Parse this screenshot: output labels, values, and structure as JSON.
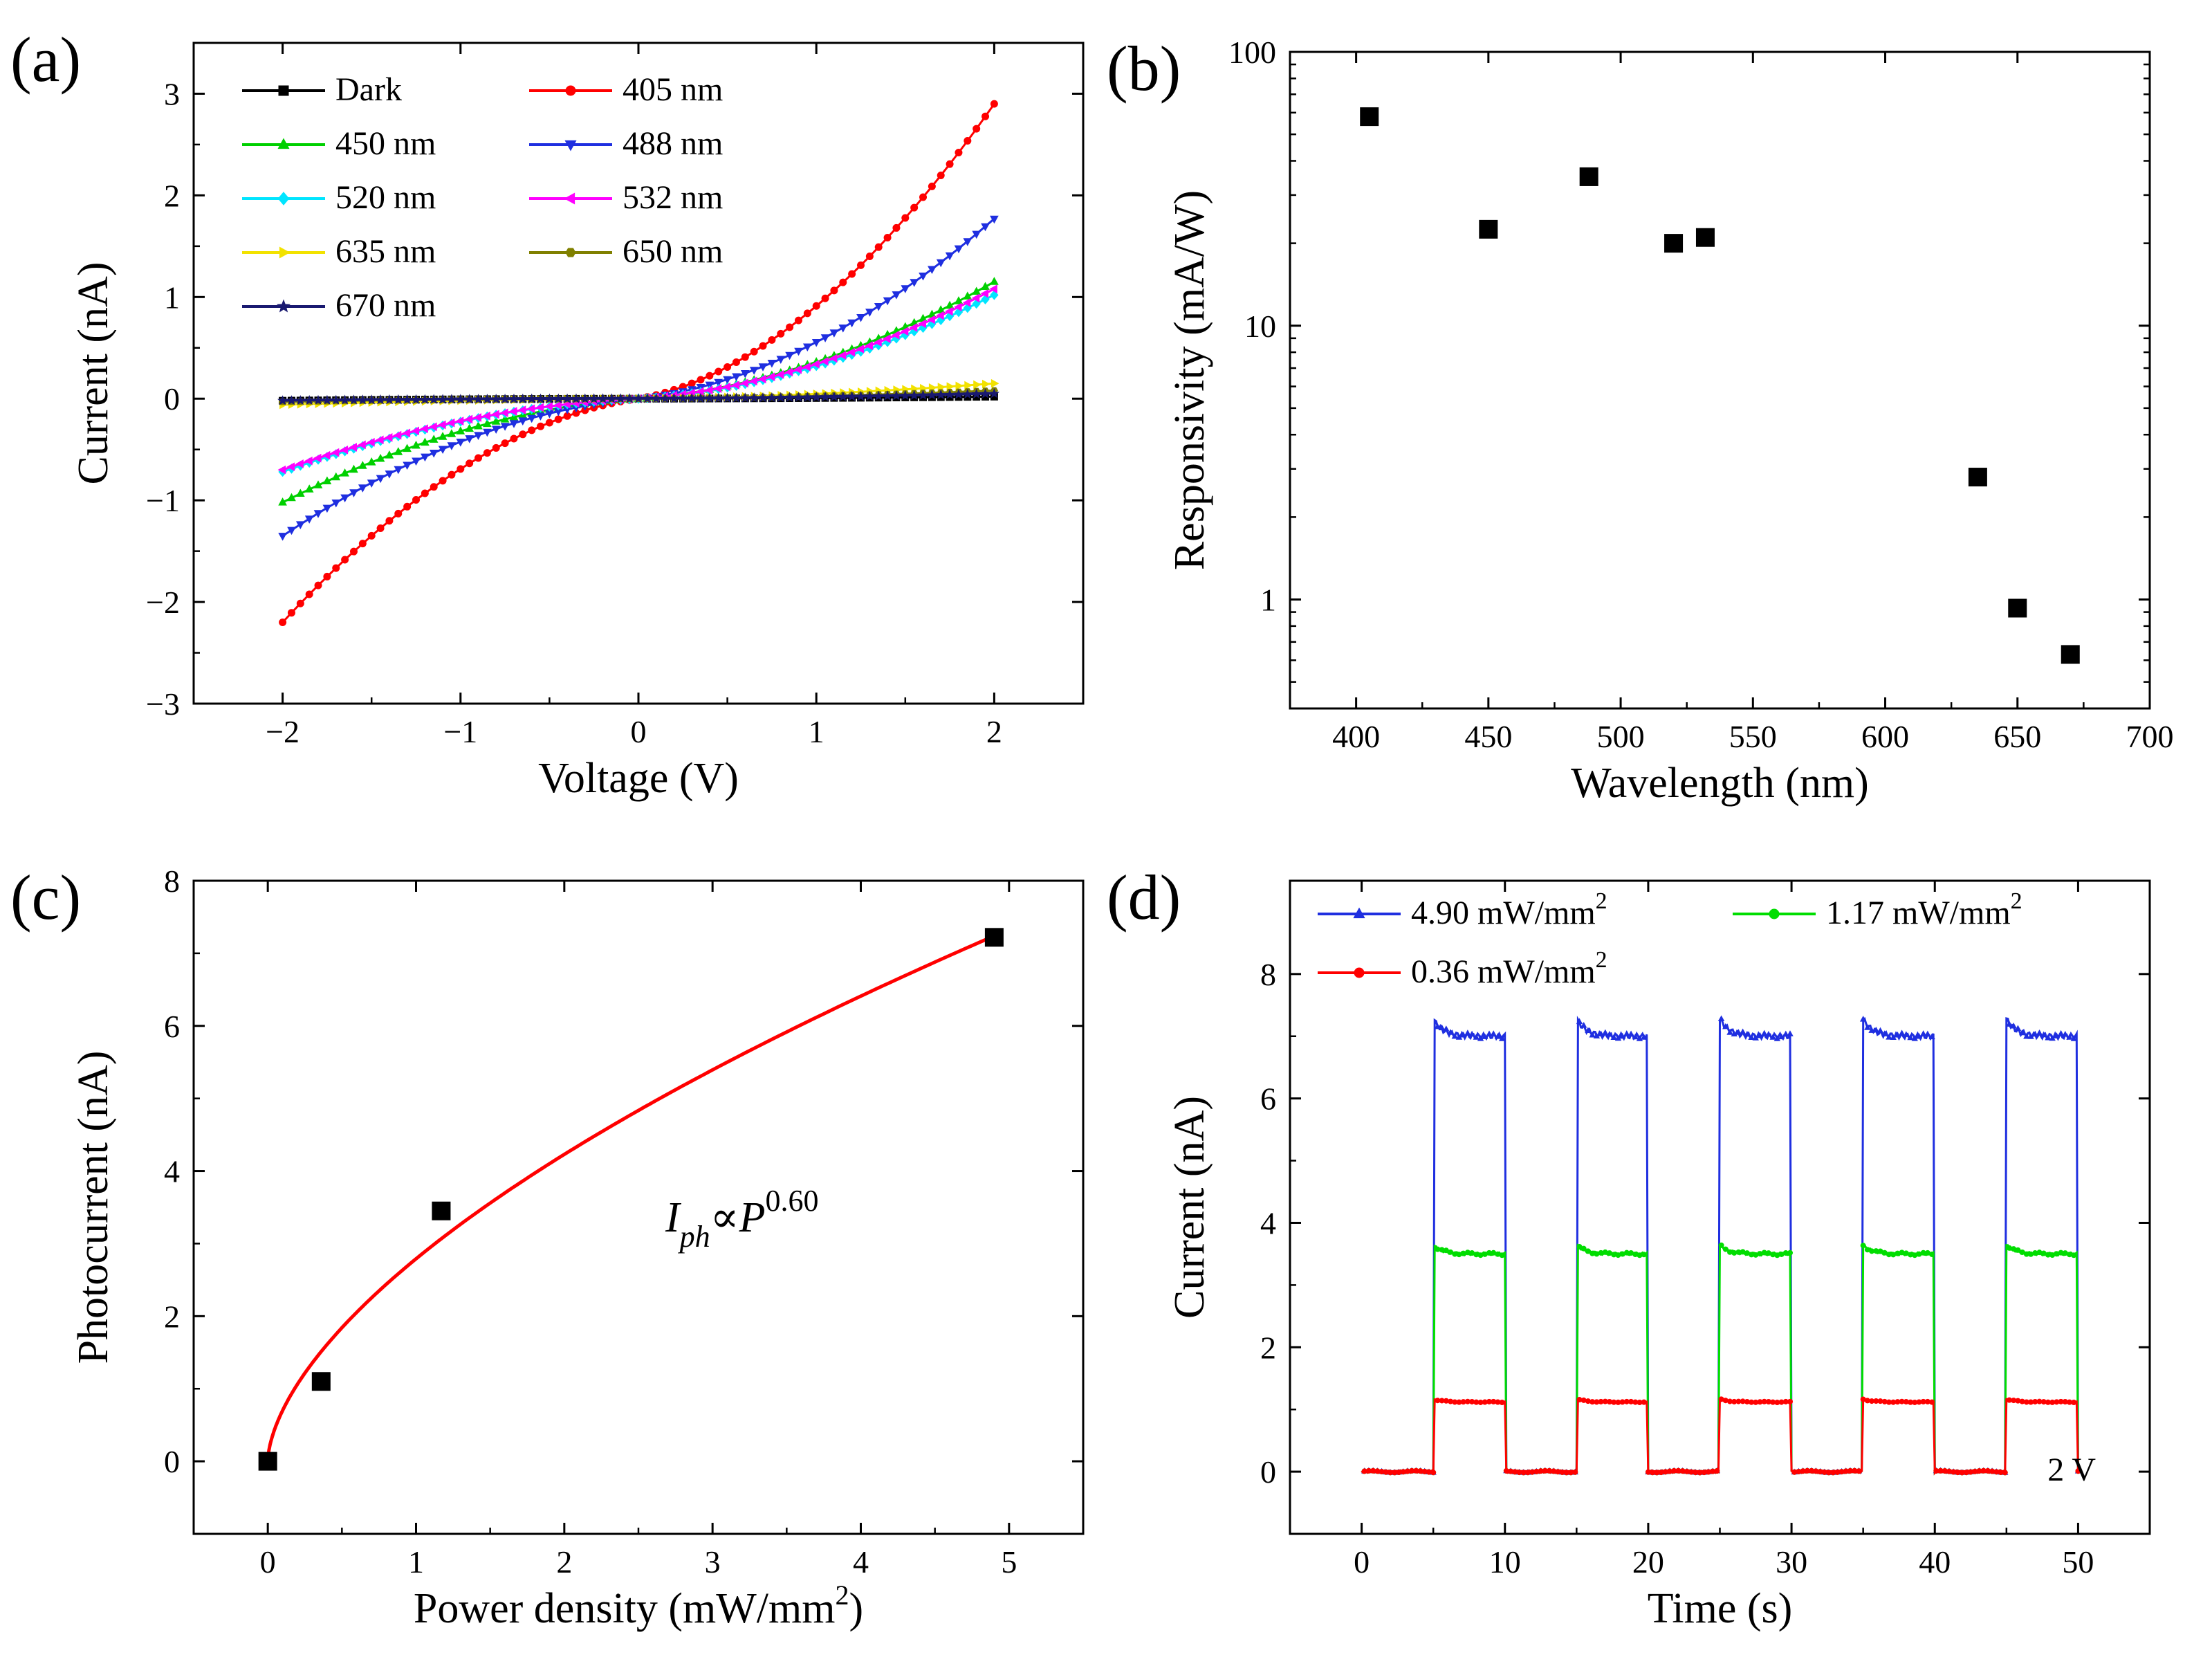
{
  "chart_data": [
    {
      "id": "a",
      "type": "line",
      "panel_label": "(a)",
      "xlabel": "Voltage (V)",
      "ylabel": "Current (nA)",
      "xlim": [
        -2.5,
        2.5
      ],
      "ylim": [
        -3,
        3.5
      ],
      "xticks": [
        -2,
        -1,
        0,
        1,
        2
      ],
      "yticks": [
        -3,
        -2,
        -1,
        0,
        1,
        2,
        3
      ],
      "xtick_labels": [
        "−2",
        "−1",
        "0",
        "1",
        "2"
      ],
      "ytick_labels": [
        "−3",
        "−2",
        "−1",
        "0",
        "1",
        "2",
        "3"
      ],
      "x_range": [
        -2,
        2
      ],
      "points_per_series": 81,
      "legend": "top-left, two columns",
      "series": [
        {
          "name": "Dark",
          "color": "#000000",
          "marker": "square",
          "i_neg2": -0.02,
          "i_pos2": 0.02
        },
        {
          "name": "405 nm",
          "color": "#ff0000",
          "marker": "circle",
          "i_neg2": -2.2,
          "i_pos2": 2.9
        },
        {
          "name": "450 nm",
          "color": "#00d000",
          "marker": "triangle-up",
          "i_neg2": -1.02,
          "i_pos2": 1.15
        },
        {
          "name": "488 nm",
          "color": "#1f2fe0",
          "marker": "triangle-down",
          "i_neg2": -1.35,
          "i_pos2": 1.77
        },
        {
          "name": "520 nm",
          "color": "#00e5ff",
          "marker": "diamond",
          "i_neg2": -0.72,
          "i_pos2": 1.02
        },
        {
          "name": "532 nm",
          "color": "#ff00ff",
          "marker": "triangle-left",
          "i_neg2": -0.7,
          "i_pos2": 1.08
        },
        {
          "name": "635 nm",
          "color": "#f2e200",
          "marker": "triangle-right",
          "i_neg2": -0.06,
          "i_pos2": 0.15
        },
        {
          "name": "650 nm",
          "color": "#808000",
          "marker": "hexagon",
          "i_neg2": -0.03,
          "i_pos2": 0.08
        },
        {
          "name": "670 nm",
          "color": "#191970",
          "marker": "star",
          "i_neg2": -0.02,
          "i_pos2": 0.05
        }
      ]
    },
    {
      "id": "b",
      "type": "scatter",
      "panel_label": "(b)",
      "xlabel": "Wavelength (nm)",
      "ylabel": "Responsivity (mA/W)",
      "yscale": "log",
      "xlim": [
        375,
        700
      ],
      "ylim": [
        0.4,
        100
      ],
      "xticks": [
        400,
        450,
        500,
        550,
        600,
        650,
        700
      ],
      "yticks": [
        1,
        10,
        100
      ],
      "x": [
        405,
        450,
        488,
        520,
        532,
        635,
        650,
        670
      ],
      "y": [
        58,
        22.5,
        35,
        20,
        21,
        2.8,
        0.93,
        0.63
      ]
    },
    {
      "id": "c",
      "type": "scatter",
      "panel_label": "(c)",
      "xlabel": "Power density (mW/mm",
      "xlabel_sup": "2",
      "xlabel_tail": ")",
      "ylabel": "Photocurrent (nA)",
      "xlim": [
        -0.5,
        5.5
      ],
      "ylim": [
        -1,
        8
      ],
      "xticks": [
        0,
        1,
        2,
        3,
        4,
        5
      ],
      "yticks": [
        0,
        2,
        4,
        6,
        8
      ],
      "x": [
        0,
        0.36,
        1.17,
        4.9
      ],
      "y": [
        0,
        1.1,
        3.45,
        7.22
      ],
      "fit": {
        "exponent": 0.6,
        "coefficient": 2.79,
        "color": "#ff0000"
      },
      "annotation": {
        "base": "I",
        "sub": "ph",
        "symbol": "∝",
        "var": "P",
        "sup": "0.60"
      }
    },
    {
      "id": "d",
      "type": "line",
      "panel_label": "(d)",
      "xlabel": "Time (s)",
      "ylabel": "Current (nA)",
      "xlim": [
        -5,
        55
      ],
      "ylim": [
        -1,
        9.5
      ],
      "xticks": [
        0,
        10,
        20,
        30,
        40,
        50
      ],
      "yticks": [
        0,
        2,
        4,
        6,
        8
      ],
      "on_intervals": [
        [
          5,
          10
        ],
        [
          15,
          20
        ],
        [
          25,
          30
        ],
        [
          35,
          40
        ],
        [
          45,
          50
        ]
      ],
      "annotation": "2 V",
      "legend": "top, two columns",
      "series": [
        {
          "name": "4.90 mW/mm",
          "sup": "2",
          "color": "#1f2fe0",
          "marker": "triangle-up",
          "on_level": 7.0
        },
        {
          "name": "1.17 mW/mm",
          "sup": "2",
          "color": "#00dd00",
          "marker": "circle",
          "on_level": 3.5
        },
        {
          "name": "0.36 mW/mm",
          "sup": "2",
          "color": "#ff0000",
          "marker": "circle",
          "on_level": 1.12
        }
      ]
    }
  ]
}
